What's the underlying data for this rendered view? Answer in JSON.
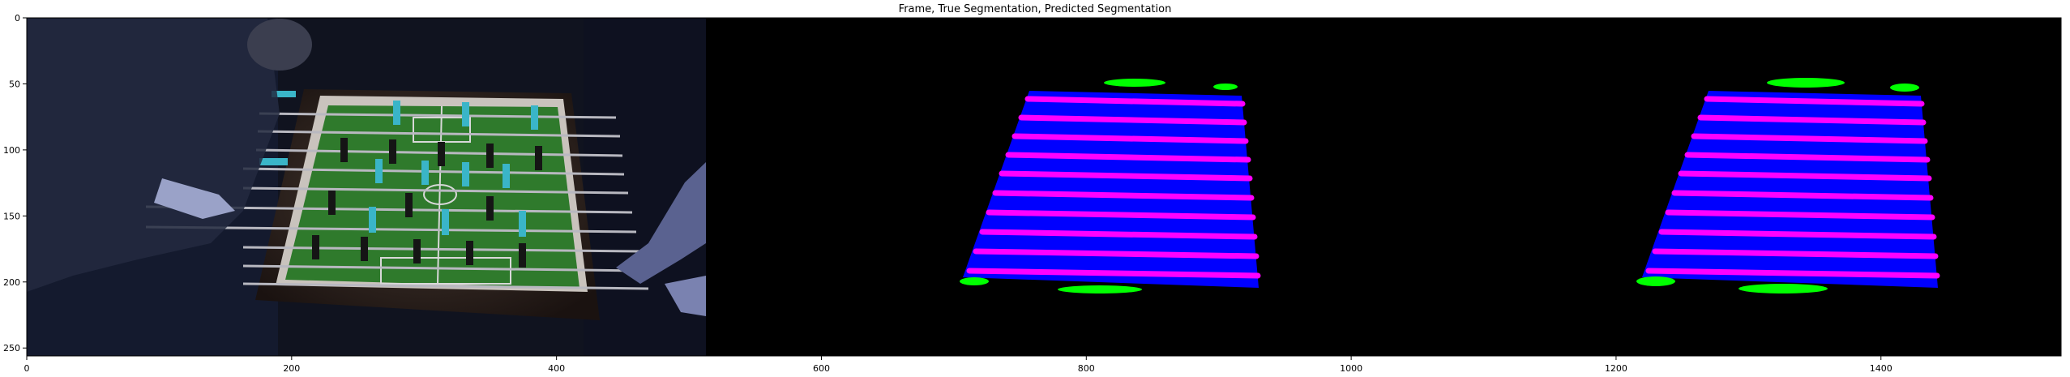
{
  "figure": {
    "title": "Frame, True Segmentation, Predicted Segmentation"
  },
  "axes": {
    "xlim": [
      0,
      1536
    ],
    "ylim": [
      256,
      0
    ],
    "xticks": [
      "0",
      "200",
      "400",
      "600",
      "800",
      "1000",
      "1200",
      "1400"
    ],
    "yticks": [
      "0",
      "50",
      "100",
      "150",
      "200",
      "250"
    ]
  },
  "panels": [
    {
      "name": "frame",
      "content": "photo of foosball table with players"
    },
    {
      "name": "true-segmentation",
      "classes": [
        "field",
        "rods",
        "goal-zones"
      ]
    },
    {
      "name": "predicted-segmentation",
      "classes": [
        "field",
        "rods",
        "goal-zones"
      ]
    }
  ],
  "colors": {
    "field": "#0000ff",
    "rods": "#ff00ff",
    "goal_zones": "#00ff00",
    "background": "#000000"
  }
}
